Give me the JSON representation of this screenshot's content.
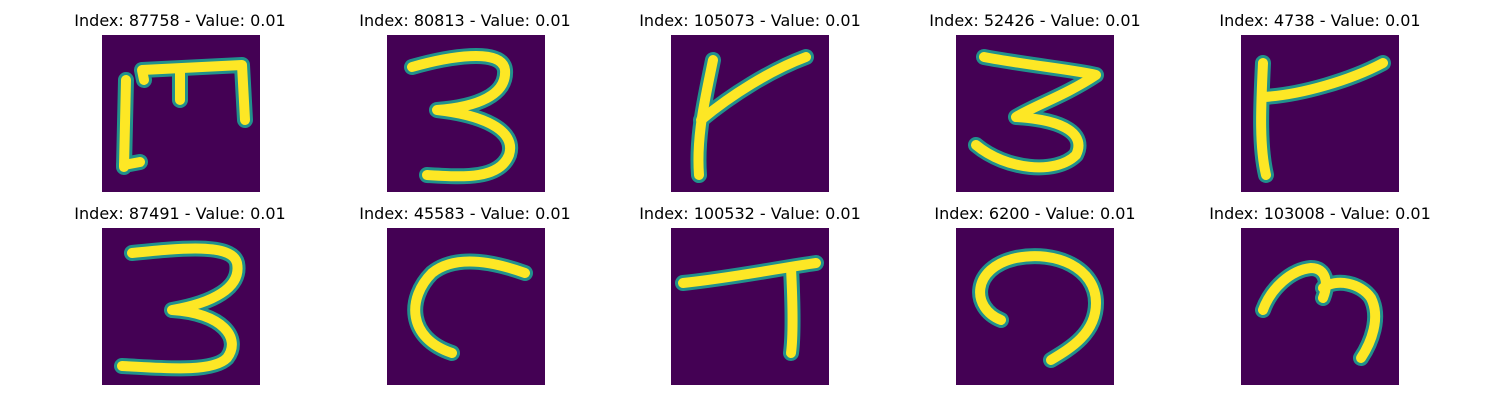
{
  "colors": {
    "background": "#440154",
    "stroke_outer": "#21918c",
    "stroke_inner": "#fde725"
  },
  "panels": [
    {
      "title": "Index: 87758 - Value: 0.01",
      "glyph": "m-shape-icon"
    },
    {
      "title": "Index: 80813 - Value: 0.01",
      "glyph": "three-icon"
    },
    {
      "title": "Index: 105073 - Value: 0.01",
      "glyph": "k-shape-icon"
    },
    {
      "title": "Index: 52426 - Value: 0.01",
      "glyph": "three-icon"
    },
    {
      "title": "Index: 4738 - Value: 0.01",
      "glyph": "flag-shape-icon"
    },
    {
      "title": "Index: 87491 - Value: 0.01",
      "glyph": "three-icon"
    },
    {
      "title": "Index: 45583 - Value: 0.01",
      "glyph": "c-shape-icon"
    },
    {
      "title": "Index: 100532 - Value: 0.01",
      "glyph": "seven-shape-icon"
    },
    {
      "title": "Index: 6200 - Value: 0.01",
      "glyph": "arch-shape-icon"
    },
    {
      "title": "Index: 103008 - Value: 0.01",
      "glyph": "m-shape-icon"
    }
  ]
}
